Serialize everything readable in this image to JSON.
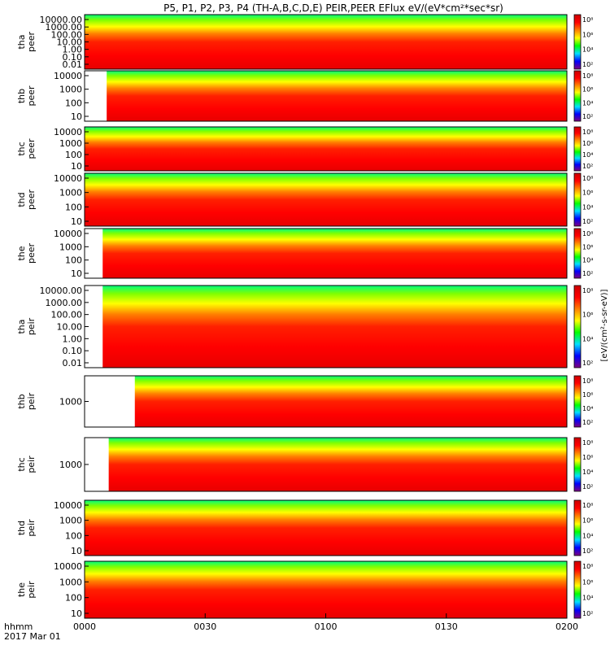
{
  "chart_data": {
    "type": "heatmap",
    "title": "P5, P1, P2, P3, P4 (TH-A,B,C,D,E) PEIR,PEER EFlux eV/(eV*cm²*sec*sr)",
    "xlabel": "hhmm",
    "date_label": "2017 Mar 01",
    "x_ticks": [
      "0000",
      "0030",
      "0100",
      "0130",
      "0200"
    ],
    "x_range_minutes": [
      0,
      120
    ],
    "colorbar_label": "[eV/(cm²-s-sr-eV)]",
    "colorbar_ticks": [
      "10²",
      "10⁴",
      "10⁶",
      "10⁸"
    ],
    "colorscale": [
      "#7f007f",
      "#0000ff",
      "#00e0ff",
      "#00ff00",
      "#ffff00",
      "#ff8000",
      "#ff0000",
      "#cc0000"
    ],
    "panels": [
      {
        "label": [
          "tha",
          "peer"
        ],
        "log_energy": true,
        "yticks": [
          "10000.00",
          "1000.00",
          "100.00",
          "10.00",
          "1.00",
          "0.10",
          "0.01"
        ],
        "data_start": 0.0
      },
      {
        "label": [
          "thb",
          "peer"
        ],
        "log_energy": true,
        "yticks": [
          "10000",
          "1000",
          "100",
          "10"
        ],
        "data_start": 5.5
      },
      {
        "label": [
          "thc",
          "peer"
        ],
        "log_energy": true,
        "yticks": [
          "10000",
          "1000",
          "100",
          "10"
        ],
        "data_start": 0.0
      },
      {
        "label": [
          "thd",
          "peer"
        ],
        "log_energy": true,
        "yticks": [
          "10000",
          "1000",
          "100",
          "10"
        ],
        "data_start": 0.0
      },
      {
        "label": [
          "the",
          "peer"
        ],
        "log_energy": true,
        "yticks": [
          "10000",
          "1000",
          "100",
          "10"
        ],
        "data_start": 4.5
      },
      {
        "label": [
          "tha",
          "peir"
        ],
        "log_energy": true,
        "yticks": [
          "10000.00",
          "1000.00",
          "100.00",
          "10.00",
          "1.00",
          "0.10",
          "0.01"
        ],
        "data_start": 4.5
      },
      {
        "label": [
          "thb",
          "peir"
        ],
        "log_energy": true,
        "yticks": [
          "1000"
        ],
        "data_start": 12.5
      },
      {
        "label": [
          "thc",
          "peir"
        ],
        "log_energy": true,
        "yticks": [
          "1000"
        ],
        "data_start": 6.0
      },
      {
        "label": [
          "thd",
          "peir"
        ],
        "log_energy": true,
        "yticks": [
          "10000",
          "1000",
          "100",
          "10"
        ],
        "data_start": 0.0
      },
      {
        "label": [
          "the",
          "peir"
        ],
        "log_energy": true,
        "yticks": [
          "10000",
          "1000",
          "100",
          "10"
        ],
        "data_start": 0.0
      }
    ]
  }
}
